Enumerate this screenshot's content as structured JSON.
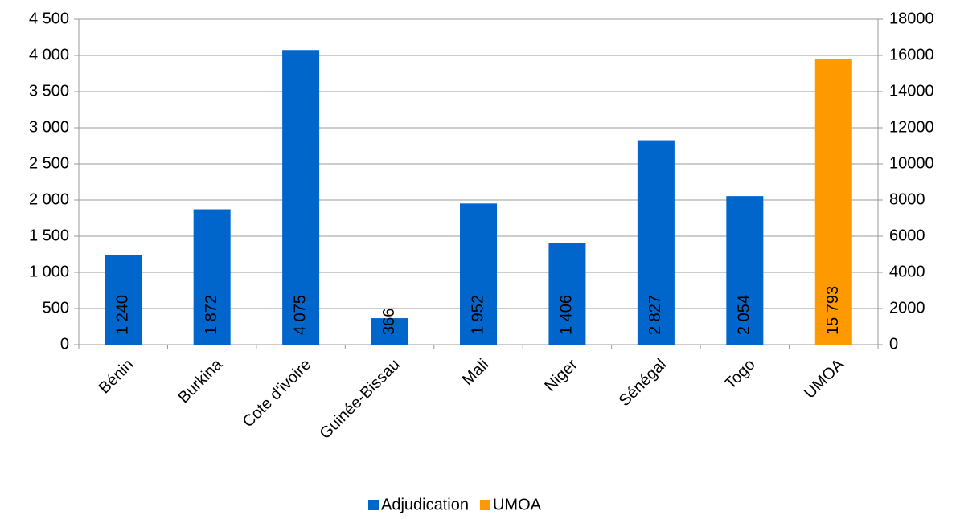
{
  "chart_data": {
    "type": "bar",
    "categories": [
      "Bénin",
      "Burkina",
      "Cote d'ivoire",
      "Guinée-Bissau",
      "Mali",
      "Niger",
      "Sénégal",
      "Togo",
      "UMOA"
    ],
    "series": [
      {
        "name": "Adjudication",
        "color": "#0066cc",
        "axis": "y",
        "values": [
          1240,
          1872,
          4075,
          366,
          1952,
          1406,
          2827,
          2054,
          null
        ],
        "value_labels": [
          "1 240",
          "1 872",
          "4 075",
          "366",
          "1 952",
          "1 406",
          "2 827",
          "2 054",
          null
        ]
      },
      {
        "name": "UMOA",
        "color": "#ff9900",
        "axis": "y2",
        "values": [
          null,
          null,
          null,
          null,
          null,
          null,
          null,
          null,
          15793
        ],
        "value_labels": [
          null,
          null,
          null,
          null,
          null,
          null,
          null,
          null,
          "15 793"
        ]
      }
    ],
    "ylim": [
      0,
      4500
    ],
    "yticks": [
      0,
      500,
      {
        "value": 1000,
        "label": "1 000"
      },
      {
        "value": 1500,
        "label": "1 500"
      },
      {
        "value": 2000,
        "label": "2 000"
      },
      {
        "value": 2500,
        "label": "2 500"
      },
      {
        "value": 3000,
        "label": "3 000"
      },
      {
        "value": 3500,
        "label": "3 500"
      },
      {
        "value": 4000,
        "label": "4 000"
      },
      {
        "value": 4500,
        "label": "4 500"
      }
    ],
    "y2lim": [
      0,
      18000
    ],
    "y2ticks": [
      0,
      2000,
      4000,
      6000,
      8000,
      10000,
      12000,
      14000,
      16000,
      18000
    ],
    "grid": true,
    "legend": "bottom"
  }
}
